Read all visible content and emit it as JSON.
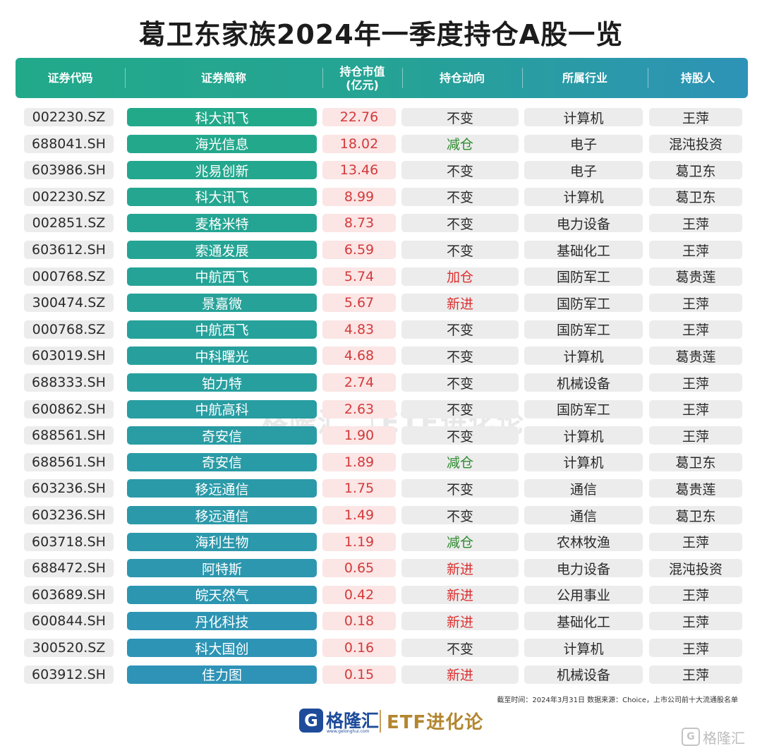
{
  "title": "葛卫东家族2024年一季度持仓A股一览",
  "headers": {
    "code": "证券代码",
    "name": "证券简称",
    "value_line1": "持仓市值",
    "value_line2": "(亿元)",
    "direction": "持仓动向",
    "industry": "所属行业",
    "holder": "持股人"
  },
  "rows": [
    {
      "code": "002230.SZ",
      "name": "科大讯飞",
      "value": "22.76",
      "direction": "不变",
      "industry": "计算机",
      "holder": "王萍"
    },
    {
      "code": "688041.SH",
      "name": "海光信息",
      "value": "18.02",
      "direction": "减仓",
      "industry": "电子",
      "holder": "混沌投资"
    },
    {
      "code": "603986.SH",
      "name": "兆易创新",
      "value": "13.46",
      "direction": "不变",
      "industry": "电子",
      "holder": "葛卫东"
    },
    {
      "code": "002230.SZ",
      "name": "科大讯飞",
      "value": "8.99",
      "direction": "不变",
      "industry": "计算机",
      "holder": "葛卫东"
    },
    {
      "code": "002851.SZ",
      "name": "麦格米特",
      "value": "8.73",
      "direction": "不变",
      "industry": "电力设备",
      "holder": "王萍"
    },
    {
      "code": "603612.SH",
      "name": "索通发展",
      "value": "6.59",
      "direction": "不变",
      "industry": "基础化工",
      "holder": "王萍"
    },
    {
      "code": "000768.SZ",
      "name": "中航西飞",
      "value": "5.74",
      "direction": "加仓",
      "industry": "国防军工",
      "holder": "葛贵莲"
    },
    {
      "code": "300474.SZ",
      "name": "景嘉微",
      "value": "5.67",
      "direction": "新进",
      "industry": "国防军工",
      "holder": "王萍"
    },
    {
      "code": "000768.SZ",
      "name": "中航西飞",
      "value": "4.83",
      "direction": "不变",
      "industry": "国防军工",
      "holder": "王萍"
    },
    {
      "code": "603019.SH",
      "name": "中科曙光",
      "value": "4.68",
      "direction": "不变",
      "industry": "计算机",
      "holder": "葛贵莲"
    },
    {
      "code": "688333.SH",
      "name": "铂力特",
      "value": "2.74",
      "direction": "不变",
      "industry": "机械设备",
      "holder": "王萍"
    },
    {
      "code": "600862.SH",
      "name": "中航高科",
      "value": "2.63",
      "direction": "不变",
      "industry": "国防军工",
      "holder": "王萍"
    },
    {
      "code": "688561.SH",
      "name": "奇安信",
      "value": "1.90",
      "direction": "不变",
      "industry": "计算机",
      "holder": "王萍"
    },
    {
      "code": "688561.SH",
      "name": "奇安信",
      "value": "1.89",
      "direction": "减仓",
      "industry": "计算机",
      "holder": "葛卫东"
    },
    {
      "code": "603236.SH",
      "name": "移远通信",
      "value": "1.75",
      "direction": "不变",
      "industry": "通信",
      "holder": "葛贵莲"
    },
    {
      "code": "603236.SH",
      "name": "移远通信",
      "value": "1.49",
      "direction": "不变",
      "industry": "通信",
      "holder": "葛卫东"
    },
    {
      "code": "603718.SH",
      "name": "海利生物",
      "value": "1.19",
      "direction": "减仓",
      "industry": "农林牧渔",
      "holder": "王萍"
    },
    {
      "code": "688472.SH",
      "name": "阿特斯",
      "value": "0.65",
      "direction": "新进",
      "industry": "电力设备",
      "holder": "混沌投资"
    },
    {
      "code": "603689.SH",
      "name": "皖天然气",
      "value": "0.42",
      "direction": "新进",
      "industry": "公用事业",
      "holder": "王萍"
    },
    {
      "code": "600844.SH",
      "name": "丹化科技",
      "value": "0.18",
      "direction": "新进",
      "industry": "基础化工",
      "holder": "王萍"
    },
    {
      "code": "300520.SZ",
      "name": "科大国创",
      "value": "0.16",
      "direction": "不变",
      "industry": "计算机",
      "holder": "王萍"
    },
    {
      "code": "603912.SH",
      "name": "佳力图",
      "value": "0.15",
      "direction": "新进",
      "industry": "机械设备",
      "holder": "王萍"
    }
  ],
  "direction_colors": {
    "不变": "#2a2a2a",
    "减仓": "#2e8b2e",
    "加仓": "#dd3030",
    "新进": "#dd3030"
  },
  "name_gradient": {
    "start": "#22a98a",
    "end": "#2e93b7"
  },
  "watermark": {
    "brand": "格隆汇",
    "etf": "ETF进化论"
  },
  "footnote": "截至时间：2024年3月31日 数据来源：Choice，上市公司前十大流通股名单",
  "logo": {
    "mark": "G",
    "brand": "格隆汇",
    "url": "www.gelonghui.com",
    "etf": "ETF进化论"
  },
  "corner_mark": {
    "icon": "G",
    "text": "格隆汇"
  }
}
